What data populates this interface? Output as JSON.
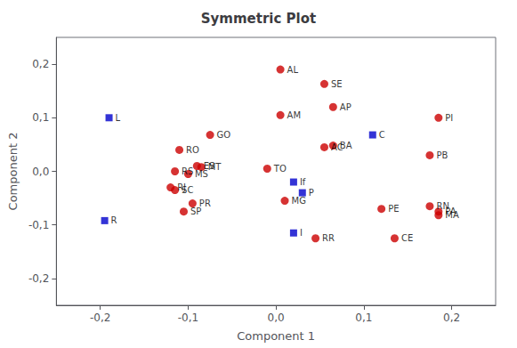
{
  "chart_data": {
    "type": "scatter",
    "title": "Symmetric Plot",
    "xlabel": "Component 1",
    "ylabel": "Component 2",
    "xlim": [
      -0.25,
      0.25
    ],
    "ylim": [
      -0.25,
      0.25
    ],
    "xticks": [
      {
        "value": -0.2,
        "label": "-0,2"
      },
      {
        "value": -0.1,
        "label": "-0,1"
      },
      {
        "value": 0.0,
        "label": "0,0"
      },
      {
        "value": 0.1,
        "label": "0,1"
      },
      {
        "value": 0.2,
        "label": "0,2"
      }
    ],
    "yticks": [
      {
        "value": -0.2,
        "label": "-0,2"
      },
      {
        "value": -0.1,
        "label": "-0,1"
      },
      {
        "value": 0.0,
        "label": "0,0"
      },
      {
        "value": 0.1,
        "label": "0,1"
      },
      {
        "value": 0.2,
        "label": "0,2"
      }
    ],
    "grid": false,
    "series": [
      {
        "color": "#cc0000",
        "marker": "circle",
        "labels": [
          "AL",
          "SE",
          "AM",
          "AP",
          "PI",
          "GO",
          "BA",
          "AC",
          "PB",
          "RO",
          "ES",
          "MT",
          "RS",
          "MS",
          "RJ",
          "SC",
          "PR",
          "SP",
          "MG",
          "PE",
          "RN",
          "PA",
          "MA",
          "RR",
          "CE",
          "TO"
        ],
        "x": [
          0.005,
          0.055,
          0.005,
          0.065,
          0.185,
          -0.075,
          0.065,
          0.055,
          0.175,
          -0.11,
          -0.09,
          -0.085,
          -0.115,
          -0.1,
          -0.12,
          -0.115,
          -0.095,
          -0.105,
          0.01,
          0.12,
          0.175,
          0.185,
          0.185,
          0.045,
          0.135,
          -0.01
        ],
        "y": [
          0.19,
          0.163,
          0.105,
          0.12,
          0.1,
          0.068,
          0.048,
          0.045,
          0.03,
          0.04,
          0.01,
          0.008,
          0.0,
          -0.005,
          -0.03,
          -0.035,
          -0.06,
          -0.075,
          -0.055,
          -0.07,
          -0.065,
          -0.075,
          -0.082,
          -0.125,
          -0.125,
          0.005
        ]
      },
      {
        "color": "#0000cc",
        "marker": "square",
        "labels": [
          "L",
          "C",
          "If",
          "P",
          "R",
          "I"
        ],
        "x": [
          -0.19,
          0.11,
          0.02,
          0.03,
          -0.195,
          0.02
        ],
        "y": [
          0.1,
          0.068,
          -0.02,
          -0.04,
          -0.092,
          -0.115
        ]
      }
    ]
  }
}
